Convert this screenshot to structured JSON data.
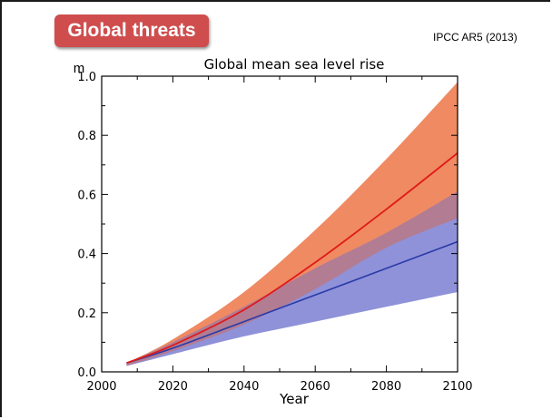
{
  "slide": {
    "tag": "Global threats",
    "source": "IPCC AR5 (2013)"
  },
  "colors": {
    "red_band": "#f08a62",
    "blue_band": "#8f92d8",
    "overlap": "#b27c93",
    "red_line": "#e01a1a",
    "blue_line": "#2a3aa8"
  },
  "chart_data": {
    "type": "area",
    "title": "Global mean sea level rise",
    "ylabel": "m",
    "xlabel": "Year",
    "xlim": [
      2000,
      2100
    ],
    "ylim": [
      0.0,
      1.0
    ],
    "xticks": [
      "2000",
      "2020",
      "2040",
      "2060",
      "2080",
      "2100"
    ],
    "yticks": [
      "0.0",
      "0.2",
      "0.4",
      "0.6",
      "0.8",
      "1.0"
    ],
    "grid": false,
    "series": [
      {
        "color": "red",
        "x": [
          2007,
          2020,
          2040,
          2060,
          2080,
          2100
        ],
        "mean": [
          0.03,
          0.09,
          0.21,
          0.37,
          0.55,
          0.74
        ],
        "low": [
          0.02,
          0.07,
          0.16,
          0.28,
          0.42,
          0.52
        ],
        "high": [
          0.03,
          0.11,
          0.27,
          0.48,
          0.72,
          0.98
        ]
      },
      {
        "color": "blue",
        "x": [
          2007,
          2020,
          2040,
          2060,
          2080,
          2100
        ],
        "mean": [
          0.03,
          0.08,
          0.17,
          0.26,
          0.35,
          0.44
        ],
        "low": [
          0.02,
          0.06,
          0.12,
          0.17,
          0.22,
          0.27
        ],
        "high": [
          0.03,
          0.1,
          0.22,
          0.35,
          0.47,
          0.61
        ]
      }
    ]
  }
}
